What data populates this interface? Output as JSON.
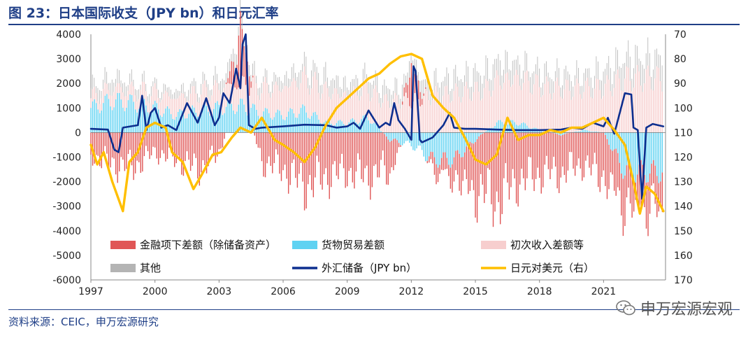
{
  "title": "图 23：日本国际收支（JPY bn）和日元汇率",
  "source": "资料来源：CEIC，申万宏源研究",
  "watermark": "申万宏源宏观",
  "colors": {
    "financial": "#e05656",
    "goods": "#5fd2f2",
    "income": "#f7cece",
    "other": "#b4b4b4",
    "reserves": "#0d2f8f",
    "usdjpy": "#ffbf00",
    "title": "#1f3f87"
  },
  "chart_data": {
    "type": "bar",
    "title": "",
    "xlabel": "",
    "ylabel": "",
    "x_ticks": [
      "1997",
      "2000",
      "2003",
      "2006",
      "2009",
      "2012",
      "2015",
      "2018",
      "2021"
    ],
    "ylim_left": [
      -6000,
      4000
    ],
    "yticks_left": [
      4000,
      3000,
      2000,
      1000,
      0,
      -1000,
      -2000,
      -3000,
      -4000,
      -5000,
      -6000
    ],
    "ylim_right": [
      70,
      170
    ],
    "right_axis_inverted": true,
    "yticks_right": [
      70,
      80,
      90,
      100,
      110,
      120,
      130,
      140,
      150,
      160,
      170
    ],
    "legend": [
      {
        "label": "金融项下差额（除储备资产）",
        "kind": "bar",
        "color": "#e05656"
      },
      {
        "label": "货物贸易差额",
        "kind": "bar",
        "color": "#5fd2f2"
      },
      {
        "label": "初次收入差额等",
        "kind": "bar",
        "color": "#f7cece"
      },
      {
        "label": "其他",
        "kind": "bar",
        "color": "#b4b4b4"
      },
      {
        "label": "外汇储备（JPY bn）",
        "kind": "line",
        "color": "#0d2f8f"
      },
      {
        "label": "日元对美元（右）",
        "kind": "line",
        "color": "#ffbf00"
      }
    ],
    "bar_series": [
      {
        "name": "金融项下差额（除储备资产）",
        "x": [
          1997,
          1998,
          1999,
          2000,
          2001,
          2002,
          2003,
          2004,
          2005,
          2006,
          2007,
          2008,
          2009,
          2010,
          2011,
          2012,
          2013,
          2014,
          2015,
          2016,
          2017,
          2018,
          2019,
          2020,
          2021,
          2022
        ],
        "values": [
          -900,
          -1300,
          -1400,
          -800,
          -1100,
          -1500,
          -900,
          2000,
          -1200,
          -1500,
          -2200,
          -1800,
          -1600,
          -1800,
          -1400,
          1200,
          -500,
          -800,
          -2200,
          -2800,
          -2000,
          -1700,
          -1600,
          -1300,
          -1800,
          -1500
        ]
      },
      {
        "name": "货物贸易差额",
        "x": [
          1997,
          1998,
          1999,
          2000,
          2001,
          2002,
          2003,
          2004,
          2005,
          2006,
          2007,
          2008,
          2009,
          2010,
          2011,
          2012,
          2013,
          2014,
          2015,
          2016,
          2017,
          2018,
          2019,
          2020,
          2021,
          2022
        ],
        "values": [
          1000,
          1300,
          1200,
          1000,
          700,
          900,
          1000,
          1100,
          800,
          700,
          900,
          400,
          400,
          600,
          -300,
          -500,
          -1100,
          -1100,
          -300,
          400,
          400,
          100,
          -100,
          100,
          0,
          -1600
        ]
      },
      {
        "name": "初次收入差额等",
        "x": [
          1997,
          1998,
          1999,
          2000,
          2001,
          2002,
          2003,
          2004,
          2005,
          2006,
          2007,
          2008,
          2009,
          2010,
          2011,
          2012,
          2013,
          2014,
          2015,
          2016,
          2017,
          2018,
          2019,
          2020,
          2021,
          2022
        ],
        "values": [
          400,
          500,
          500,
          600,
          700,
          700,
          800,
          900,
          1000,
          1100,
          1300,
          1300,
          1100,
          1200,
          1300,
          1300,
          1500,
          1600,
          1700,
          1700,
          1800,
          1800,
          1800,
          1700,
          1800,
          2200
        ]
      },
      {
        "name": "其他",
        "x": [
          1997,
          1998,
          1999,
          2000,
          2001,
          2002,
          2003,
          2004,
          2005,
          2006,
          2007,
          2008,
          2009,
          2010,
          2011,
          2012,
          2013,
          2014,
          2015,
          2016,
          2017,
          2018,
          2019,
          2020,
          2021,
          2022
        ],
        "values": [
          700,
          800,
          600,
          500,
          500,
          600,
          700,
          900,
          600,
          700,
          900,
          1000,
          800,
          900,
          900,
          800,
          1000,
          1100,
          1200,
          1300,
          1100,
          1000,
          1000,
          900,
          1200,
          1400
        ]
      }
    ],
    "line_series": [
      {
        "name": "外汇储备（JPY bn）",
        "axis": "left",
        "x": [
          1997,
          1997.8,
          1998.1,
          1998.3,
          1998.5,
          1999.2,
          1999.4,
          1999.6,
          1999.8,
          2000,
          2000.3,
          2000.6,
          2001,
          2001.5,
          2002,
          2002.4,
          2002.8,
          2003,
          2003.2,
          2003.5,
          2003.8,
          2004,
          2004.1,
          2004.25,
          2004.4,
          2004.7,
          2005,
          2006,
          2007,
          2008,
          2008.5,
          2009,
          2009.3,
          2009.6,
          2010,
          2010.5,
          2010.8,
          2011,
          2011.2,
          2011.4,
          2011.7,
          2012,
          2012.1,
          2012.2,
          2012.4,
          2012.5,
          2013,
          2013.5,
          2013.8,
          2014,
          2014.5,
          2015,
          2016,
          2017,
          2018,
          2019,
          2019.5,
          2020,
          2020.5,
          2021,
          2021.2,
          2021.5,
          2022,
          2022.3,
          2022.4,
          2022.6,
          2022.8,
          2023,
          2023.3,
          2023.8
        ],
        "values": [
          150,
          120,
          -700,
          -800,
          200,
          300,
          1500,
          100,
          800,
          1000,
          200,
          300,
          100,
          1200,
          400,
          1400,
          300,
          600,
          1600,
          1200,
          2600,
          1800,
          3600,
          4000,
          300,
          150,
          200,
          250,
          320,
          300,
          200,
          250,
          400,
          150,
          900,
          200,
          400,
          300,
          1200,
          500,
          150,
          -300,
          2700,
          2500,
          -300,
          -400,
          -200,
          300,
          800,
          200,
          150,
          150,
          120,
          100,
          100,
          120,
          200,
          150,
          400,
          250,
          600,
          -50,
          1600,
          1550,
          200,
          100,
          -2700,
          200,
          350,
          250
        ]
      },
      {
        "name": "日元对美元（右）",
        "axis": "right",
        "x": [
          1997,
          1997.3,
          1997.6,
          1998,
          1998.5,
          1998.8,
          1999.2,
          1999.6,
          2000,
          2000.5,
          2000.8,
          2001.3,
          2001.8,
          2002.2,
          2002.7,
          2003.1,
          2003.6,
          2004,
          2004.5,
          2005,
          2005.6,
          2006,
          2006.5,
          2007,
          2007.5,
          2008,
          2008.5,
          2009,
          2009.5,
          2010,
          2010.5,
          2011,
          2011.5,
          2012,
          2012.5,
          2013,
          2013.5,
          2014,
          2014.5,
          2015,
          2015.5,
          2016,
          2016.5,
          2017,
          2017.5,
          2018,
          2018.5,
          2019,
          2019.5,
          2020,
          2020.5,
          2021,
          2021.5,
          2022,
          2022.4,
          2022.7,
          2023,
          2023.4,
          2023.8
        ],
        "values": [
          115,
          123,
          118,
          130,
          142,
          122,
          118,
          108,
          106,
          108,
          118,
          122,
          133,
          127,
          119,
          118,
          112,
          108,
          110,
          104,
          113,
          115,
          118,
          122,
          116,
          107,
          100,
          96,
          92,
          88,
          86,
          82,
          79,
          78,
          80,
          95,
          100,
          104,
          112,
          121,
          123,
          119,
          104,
          113,
          111,
          111,
          109,
          110,
          108,
          108,
          106,
          104,
          109,
          115,
          130,
          143,
          132,
          135,
          142
        ]
      }
    ]
  }
}
